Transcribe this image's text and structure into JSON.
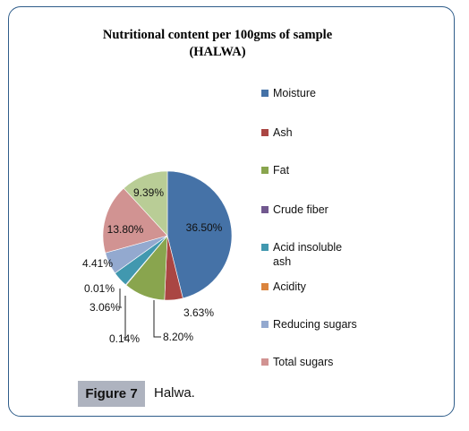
{
  "chart_data": {
    "type": "pie",
    "title": "Nutritional content per 100gms of sample (HALWA)",
    "slices": [
      {
        "name": "Moisture",
        "value": 36.5,
        "label": "36.50%",
        "color": "#4572a7"
      },
      {
        "name": "Ash",
        "value": 3.63,
        "label": "3.63%",
        "color": "#aa4643"
      },
      {
        "name": "Fat",
        "value": 8.2,
        "label": "8.20%",
        "color": "#89a54e"
      },
      {
        "name": "Crude fiber",
        "value": 0.14,
        "label": "0.14%",
        "color": "#71588f"
      },
      {
        "name": "Acid insoluble ash",
        "value": 3.06,
        "label": "3.06%",
        "color": "#4198af"
      },
      {
        "name": "Acidity",
        "value": 0.01,
        "label": "0.01%",
        "color": "#db843d"
      },
      {
        "name": "Reducing sugars",
        "value": 4.41,
        "label": "4.41%",
        "color": "#93a9cf"
      },
      {
        "name": "Total sugars",
        "value": 13.8,
        "label": "13.80%",
        "color": "#d19392"
      },
      {
        "name": "",
        "value": 9.39,
        "label": "9.39%",
        "color": "#b9cd96"
      }
    ],
    "legend_position": "right",
    "legend_entries": [
      "Moisture",
      "Ash",
      "Fat",
      "Crude fiber",
      "Acid insoluble ash",
      "Acidity",
      "Reducing sugars",
      "Total sugars"
    ]
  },
  "caption": {
    "figure_label": "Figure 7",
    "text": "Halwa."
  }
}
